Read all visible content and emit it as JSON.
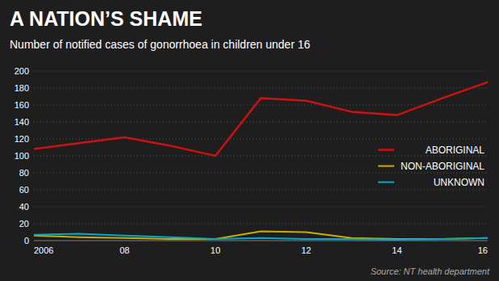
{
  "chart_data": {
    "type": "line",
    "title": "A NATION’S SHAME",
    "subtitle": "Number of notified cases of gonorrhoea in children under 16",
    "source": "Source: NT health department",
    "x": [
      2006,
      2007,
      2008,
      2009,
      2010,
      2011,
      2012,
      2013,
      2014,
      2015,
      2016
    ],
    "series": [
      {
        "name": "ABORIGINAL",
        "color": "#cc1111",
        "values": [
          108,
          115,
          122,
          112,
          100,
          168,
          165,
          152,
          148,
          168,
          187
        ]
      },
      {
        "name": "NON-ABORIGINAL",
        "color": "#ccaa00",
        "values": [
          6,
          4,
          3,
          2,
          2,
          11,
          10,
          3,
          2,
          2,
          3
        ]
      },
      {
        "name": "UNKNOWN",
        "color": "#00aacc",
        "values": [
          7,
          8,
          6,
          4,
          2,
          3,
          2,
          2,
          1,
          2,
          3
        ]
      }
    ],
    "xlim": [
      2006,
      2016
    ],
    "xticks": [
      2006,
      {
        "value": 2008,
        "label": "08"
      },
      {
        "value": 2010,
        "label": "10"
      },
      {
        "value": 2012,
        "label": "12"
      },
      {
        "value": 2014,
        "label": "14"
      },
      {
        "value": 2016,
        "label": "16"
      }
    ],
    "ylim": [
      0,
      200
    ],
    "yticks": [
      0,
      20,
      40,
      60,
      80,
      100,
      120,
      140,
      160,
      180,
      200
    ],
    "grid": true,
    "legend": "right"
  }
}
